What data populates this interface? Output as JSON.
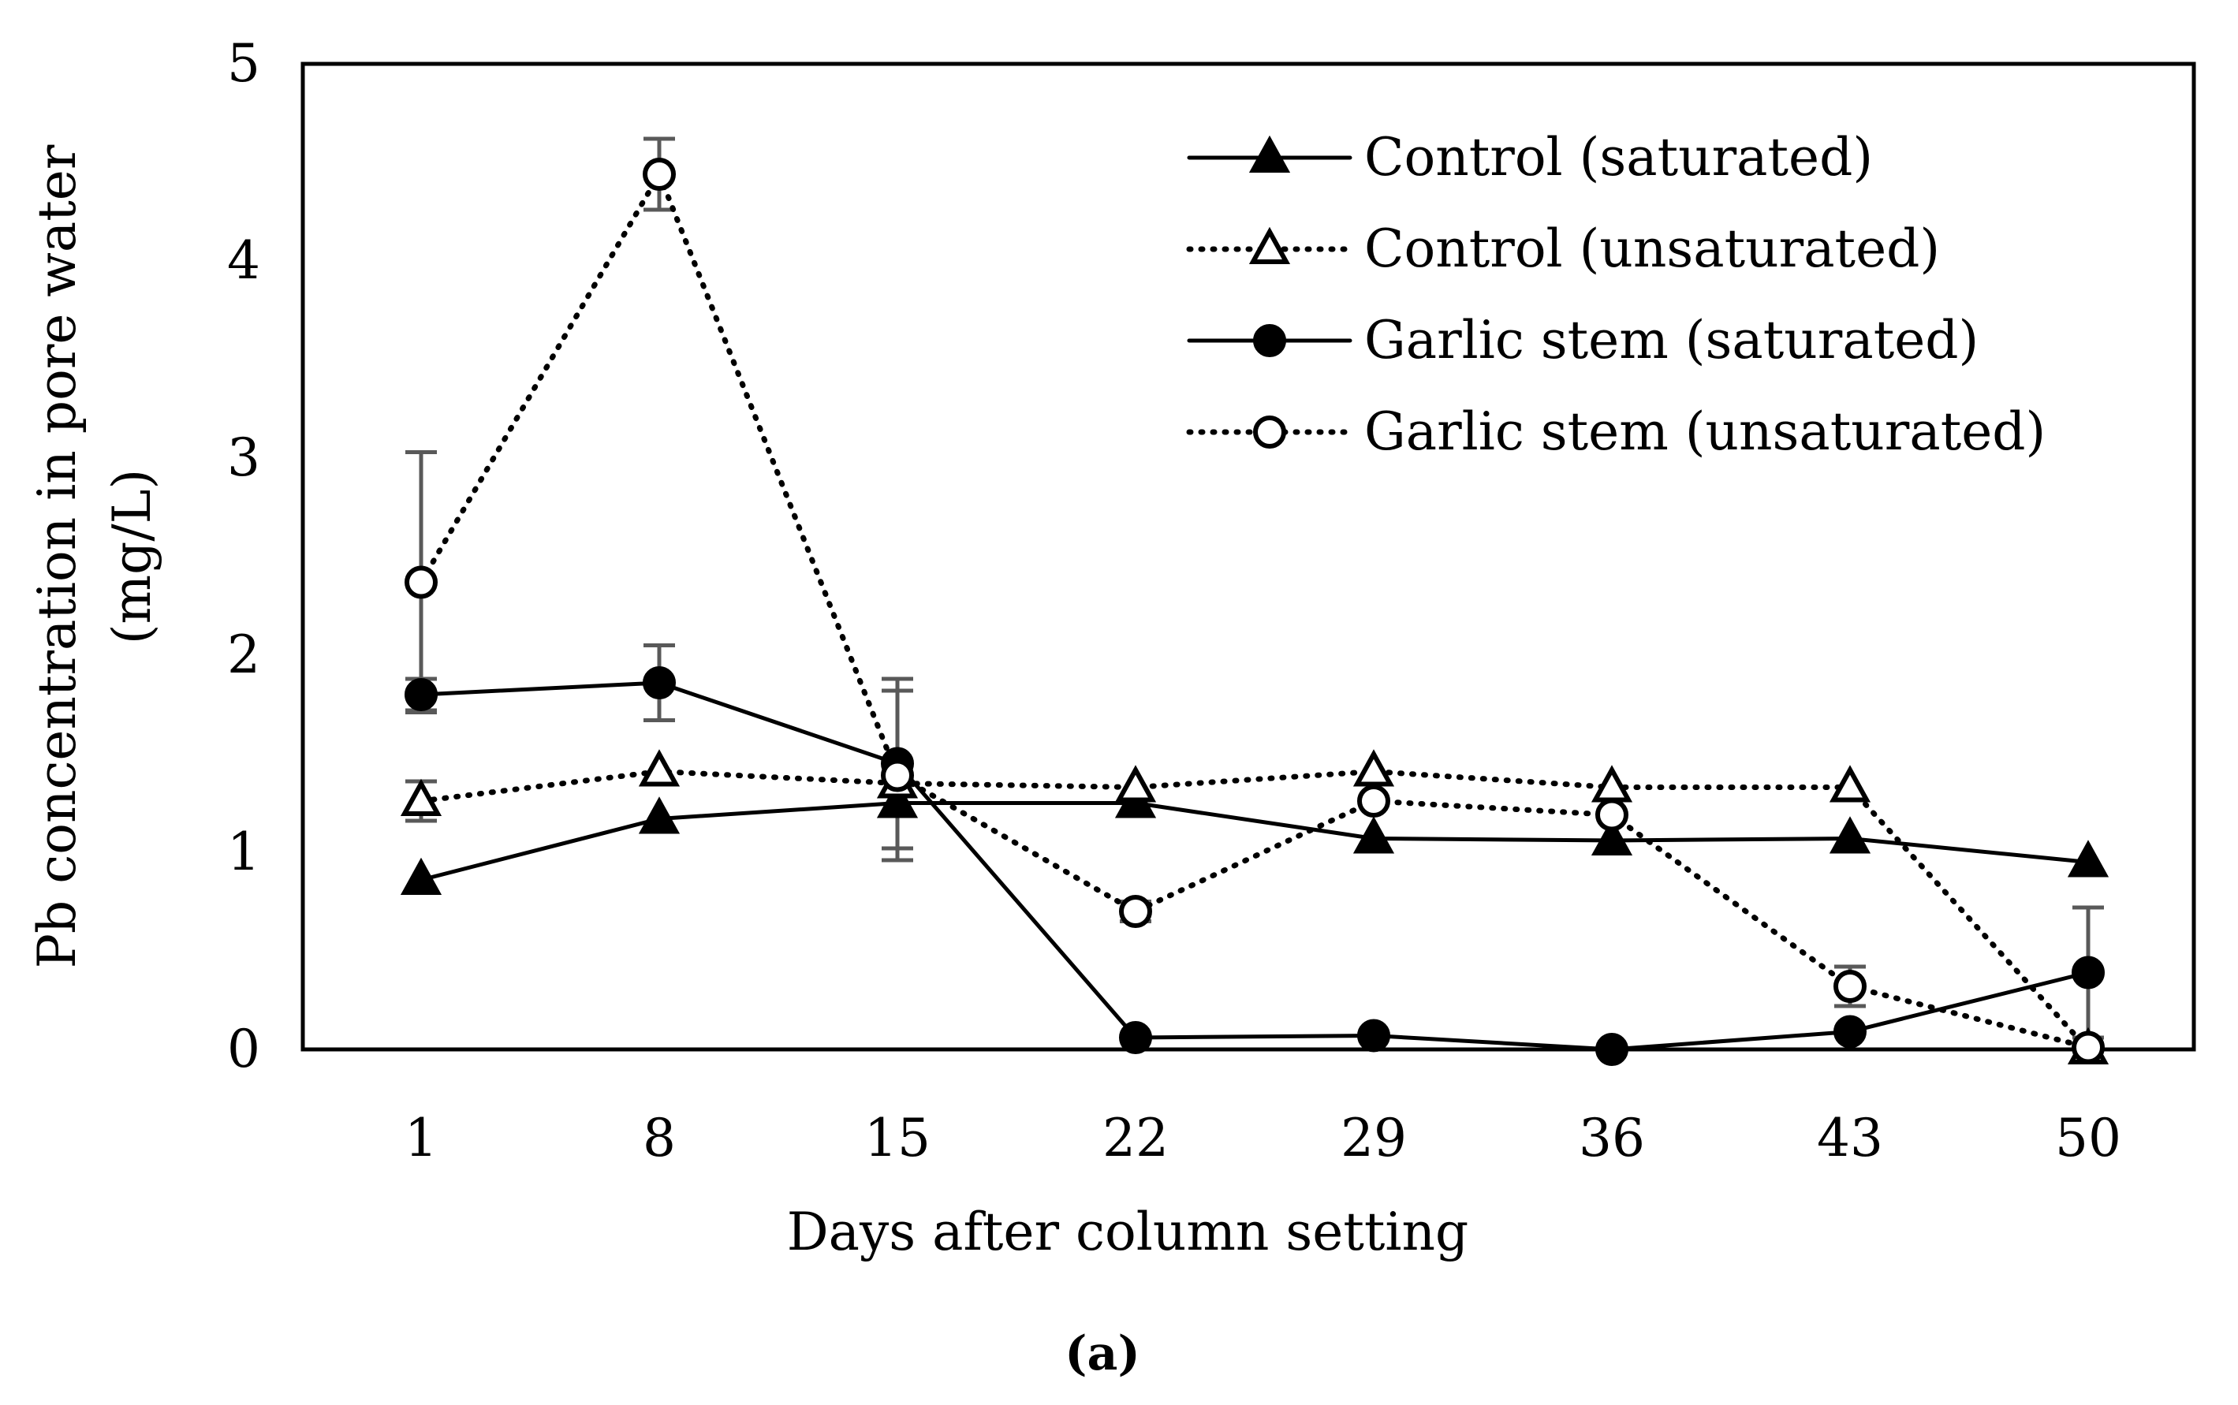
{
  "chart_data": {
    "type": "line",
    "title": "",
    "caption": "(a)",
    "xlabel": "Days after column setting",
    "ylabel": [
      "Pb concentration in pore water",
      "(mg/L)"
    ],
    "x": [
      1,
      8,
      15,
      22,
      29,
      36,
      43,
      50
    ],
    "ylim": [
      0,
      5
    ],
    "yticks": [
      0,
      1,
      2,
      3,
      4,
      5
    ],
    "grid": false,
    "legend_position": "top-right",
    "series": [
      {
        "name": "Control (saturated)",
        "marker": "triangle",
        "filled": true,
        "line": "solid",
        "values": [
          0.86,
          1.17,
          1.25,
          1.25,
          1.07,
          1.06,
          1.07,
          0.95
        ],
        "errors": [
          0,
          0,
          0,
          0,
          0,
          0,
          0,
          0
        ]
      },
      {
        "name": "Control (unsaturated)",
        "marker": "triangle",
        "filled": false,
        "line": "dotted",
        "values": [
          1.26,
          1.41,
          1.35,
          1.33,
          1.41,
          1.33,
          1.33,
          0.0
        ],
        "errors": [
          0.1,
          0,
          0,
          0,
          0,
          0,
          0,
          0
        ]
      },
      {
        "name": "Garlic stem (saturated)",
        "marker": "circle",
        "filled": true,
        "line": "solid",
        "values": [
          1.8,
          1.86,
          1.45,
          0.06,
          0.07,
          0.0,
          0.09,
          0.39
        ],
        "errors": [
          0.08,
          0.19,
          0.43,
          0,
          0,
          0,
          0,
          0.33
        ]
      },
      {
        "name": "Garlic stem (unsaturated)",
        "marker": "circle",
        "filled": false,
        "line": "dotted",
        "values": [
          2.37,
          4.44,
          1.39,
          0.7,
          1.26,
          1.19,
          0.32,
          0.01
        ],
        "errors": [
          0.66,
          0.18,
          0.43,
          0.05,
          0,
          0,
          0.1,
          0
        ]
      }
    ]
  }
}
